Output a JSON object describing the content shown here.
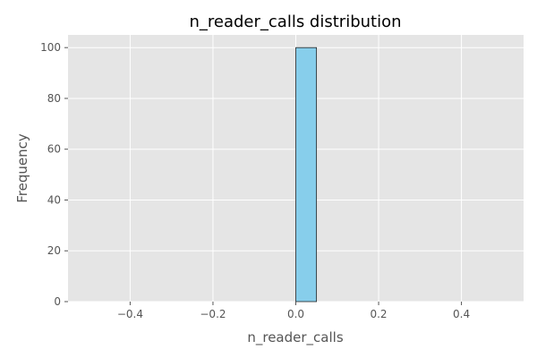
{
  "chart_data": {
    "type": "bar",
    "title": "n_reader_calls distribution",
    "xlabel": "n_reader_calls",
    "ylabel": "Frequency",
    "xlim": [
      -0.55,
      0.55
    ],
    "ylim": [
      0,
      105
    ],
    "xticks": [
      -0.4,
      -0.2,
      0.0,
      0.2,
      0.4
    ],
    "xtick_labels": [
      "−0.4",
      "−0.2",
      "0.0",
      "0.2",
      "0.4"
    ],
    "yticks": [
      0,
      20,
      40,
      60,
      80,
      100
    ],
    "ytick_labels": [
      "0",
      "20",
      "40",
      "60",
      "80",
      "100"
    ],
    "bins": [
      {
        "x0": 0.0,
        "x1": 0.05,
        "count": 100
      }
    ],
    "grid": true,
    "colors": {
      "bar_fill": "#87CEEB",
      "bar_edge": "#222222",
      "plot_background": "#E5E5E5",
      "grid": "#FFFFFF"
    }
  }
}
